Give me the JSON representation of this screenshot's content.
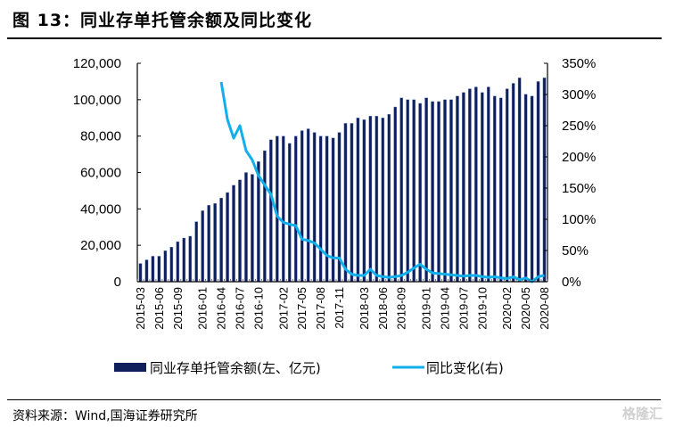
{
  "figure": {
    "title": "图 13：同业存单托管余额及同比变化",
    "source": "资料来源：Wind,国海证券研究所",
    "watermark": "格隆汇"
  },
  "colors": {
    "bar": "#0f1f5c",
    "bar_edge": "#6f86c2",
    "line": "#12b0ea",
    "axis": "#000000"
  },
  "chart_data": {
    "type": "bar",
    "title": "同业存单托管余额及同比变化",
    "xlabel": "",
    "ylabel": "",
    "y2label": "",
    "ylim": [
      0,
      120000
    ],
    "y2lim": [
      0,
      3.5
    ],
    "yticks": [
      "0",
      "20,000",
      "40,000",
      "60,000",
      "80,000",
      "100,000",
      "120,000"
    ],
    "y2ticks": [
      "0%",
      "50%",
      "100%",
      "150%",
      "200%",
      "250%",
      "300%",
      "350%"
    ],
    "grid": false,
    "legend_position": "bottom",
    "x_tick_labels": [
      "2015-03",
      "2015-06",
      "2015-09",
      "2016-01",
      "2016-04",
      "2016-07",
      "2016-10",
      "2017-02",
      "2017-05",
      "2017-08",
      "2017-11",
      "2018-03",
      "2018-06",
      "2018-09",
      "2019-01",
      "2019-04",
      "2019-07",
      "2019-10",
      "2020-02",
      "2020-05",
      "2020-08"
    ],
    "x": [
      "2015-03",
      "2015-04",
      "2015-05",
      "2015-06",
      "2015-07",
      "2015-08",
      "2015-09",
      "2015-10",
      "2015-11",
      "2015-12",
      "2016-01",
      "2016-02",
      "2016-03",
      "2016-04",
      "2016-05",
      "2016-06",
      "2016-07",
      "2016-08",
      "2016-09",
      "2016-10",
      "2016-11",
      "2016-12",
      "2017-01",
      "2017-02",
      "2017-03",
      "2017-04",
      "2017-05",
      "2017-06",
      "2017-07",
      "2017-08",
      "2017-09",
      "2017-10",
      "2017-11",
      "2017-12",
      "2018-01",
      "2018-02",
      "2018-03",
      "2018-04",
      "2018-05",
      "2018-06",
      "2018-07",
      "2018-08",
      "2018-09",
      "2018-10",
      "2018-11",
      "2018-12",
      "2019-01",
      "2019-02",
      "2019-03",
      "2019-04",
      "2019-05",
      "2019-06",
      "2019-07",
      "2019-08",
      "2019-09",
      "2019-10",
      "2019-11",
      "2019-12",
      "2020-01",
      "2020-02",
      "2020-03",
      "2020-04",
      "2020-05",
      "2020-06",
      "2020-07",
      "2020-08"
    ],
    "series": [
      {
        "name": "同业存单托管余额(左、亿元)",
        "type": "bar",
        "axis": "left",
        "values": [
          10000,
          12000,
          14000,
          14000,
          17000,
          19000,
          22000,
          24000,
          25000,
          33000,
          39000,
          42000,
          43000,
          46000,
          49000,
          53000,
          56000,
          60000,
          59000,
          66000,
          72000,
          78000,
          80000,
          80000,
          76000,
          80000,
          83000,
          84000,
          82000,
          80000,
          80000,
          79000,
          82000,
          87000,
          87000,
          90000,
          89000,
          91000,
          91000,
          90000,
          92000,
          96000,
          101000,
          100000,
          100000,
          98000,
          101000,
          99000,
          99000,
          100000,
          100000,
          102000,
          104000,
          106000,
          107000,
          104000,
          107000,
          102000,
          101000,
          106000,
          109000,
          112000,
          103000,
          102000,
          110000,
          112000
        ]
      },
      {
        "name": "同比变化(右)",
        "type": "line",
        "axis": "right",
        "values": [
          null,
          null,
          null,
          null,
          null,
          null,
          null,
          null,
          null,
          null,
          null,
          null,
          null,
          3.2,
          2.6,
          2.3,
          2.5,
          2.1,
          1.95,
          1.7,
          1.55,
          1.4,
          1.05,
          0.95,
          0.92,
          0.9,
          0.68,
          0.66,
          0.62,
          0.52,
          0.42,
          0.38,
          0.38,
          0.2,
          0.12,
          0.1,
          0.1,
          0.2,
          0.1,
          0.08,
          0.07,
          0.08,
          0.1,
          0.15,
          0.22,
          0.28,
          0.2,
          0.14,
          0.13,
          0.12,
          0.11,
          0.1,
          0.09,
          0.1,
          0.1,
          0.08,
          0.07,
          0.08,
          0.06,
          0.05,
          0.08,
          0.03,
          0.06,
          0.0,
          0.08,
          0.1
        ]
      }
    ]
  },
  "legend": {
    "bar_label": "同业存单托管余额(左、亿元)",
    "line_label": "同比变化(右)"
  }
}
